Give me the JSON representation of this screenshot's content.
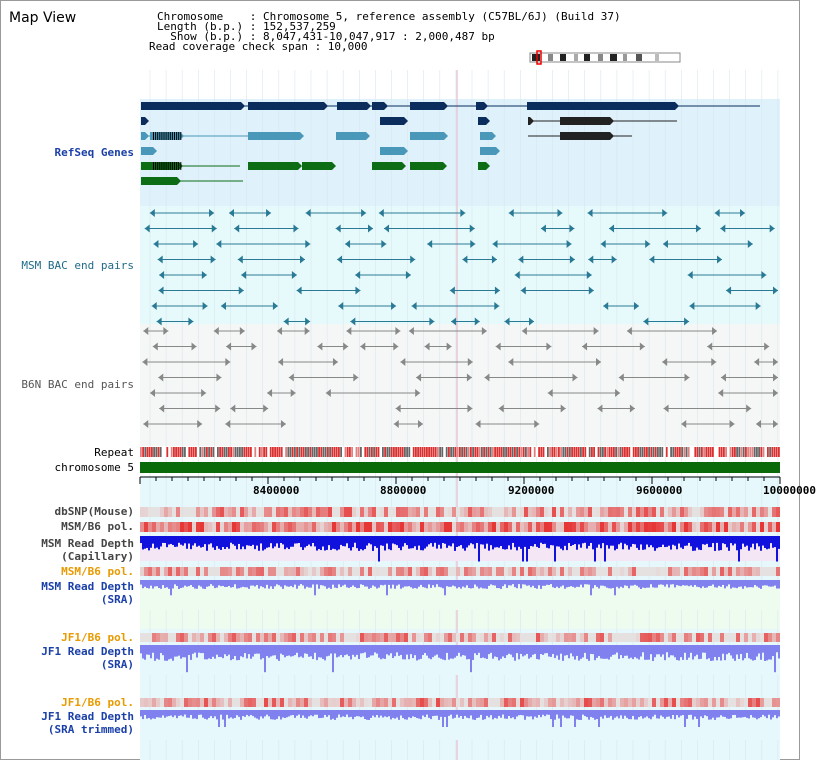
{
  "view": {
    "title": "Map View",
    "info": {
      "chromosome": "Chromosome    : Chromosome 5, reference assembly (C57BL/6J) (Build 37)",
      "length": "Length (b.p.) : 152,537,259",
      "show": "  Show (b.p.) : 8,047,431-10,047,917 : 2,000,487 bp",
      "span": "Read coverage check span : 10,000"
    }
  },
  "tracks": {
    "refseq": "RefSeq Genes",
    "msm_bac": "MSM BAC end pairs",
    "b6n_bac": "B6N BAC end pairs",
    "repeat": "Repeat",
    "chromosome": "chromosome 5",
    "dbsnp": "dbSNP(Mouse)",
    "msm_pol1": "MSM/B6 pol.",
    "msm_depth_cap_1": "MSM Read Depth",
    "msm_depth_cap_2": "(Capillary)",
    "msm_pol2": "MSM/B6 pol.",
    "msm_depth_sra_1": "MSM Read Depth",
    "msm_depth_sra_2": "(SRA)",
    "jf1_pol1": "JF1/B6 pol.",
    "jf1_depth_sra_1": "JF1 Read Depth",
    "jf1_depth_sra_2": "(SRA)",
    "jf1_pol2": "JF1/B6 pol.",
    "jf1_depth_trim_1": "JF1 Read Depth",
    "jf1_depth_trim_2": "(SRA trimmed)"
  },
  "ruler": {
    "ticks": [
      "8400000",
      "8800000",
      "9200000",
      "9600000",
      "10000000"
    ]
  },
  "colors": {
    "refseq_bg": "#dff1fa",
    "msm_bg": "#e6fafb",
    "b6n_bg": "#f5f7f7",
    "navy": "#0a2d5e",
    "teal": "#4a98b9",
    "green": "#0c6d14",
    "msm_line": "#2a7a96",
    "b6n_line": "#888888",
    "depth_cap": "#1111dd",
    "depth_sra": "#8080ee",
    "pol_red": "#e33333"
  }
}
